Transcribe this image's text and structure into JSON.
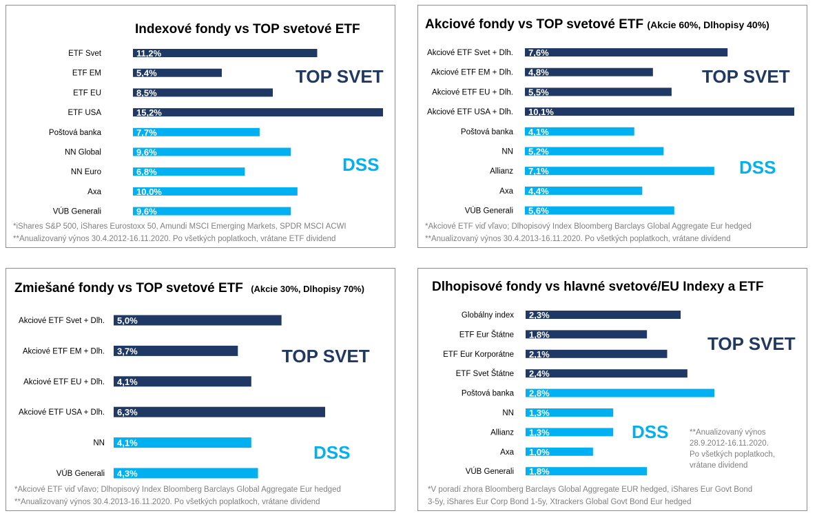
{
  "colors": {
    "top": "#1f3864",
    "dss": "#00b0f0",
    "top_text": "#1f3864",
    "dss_text": "#00b0f0"
  },
  "chart_data": [
    {
      "type": "bar",
      "title": "Indexové fondy vs TOP svetové ETF",
      "subtitle": "",
      "categories": [
        "ETF Svet",
        "ETF EM",
        "ETF EU",
        "ETF USA",
        "Poštová banka",
        "NN Global",
        "NN Euro",
        "Axa",
        "VÚB Generali"
      ],
      "values": [
        11.2,
        5.4,
        8.5,
        15.2,
        7.7,
        9.6,
        6.8,
        10.0,
        9.6
      ],
      "value_labels": [
        "11,2%",
        "5,4%",
        "8,5%",
        "15,2%",
        "7,7%",
        "9,6%",
        "6,8%",
        "10,0%",
        "9,6%"
      ],
      "groups": [
        "top",
        "top",
        "top",
        "top",
        "dss",
        "dss",
        "dss",
        "dss",
        "dss"
      ],
      "group_labels": {
        "top": "TOP SVET",
        "dss": "DSS"
      },
      "notes": [
        "*iShares S&P 500, iShares Eurostoxx 50, Amundi MSCI Emerging Markets, SPDR MSCI ACWI",
        "**Anualizovaný výnos 30.4.2012-16.11.2020. Po všetkých poplatkoch, vrátane ETF dividend"
      ]
    },
    {
      "type": "bar",
      "title": "Akciové fondy vs TOP svetové ETF",
      "subtitle": "(Akcie 60%, Dlhopisy 40%)",
      "categories": [
        "Akciové ETF Svet + Dlh.",
        "Akciové ETF EM + Dlh.",
        "Akciové ETF EU + Dlh.",
        "Akciové ETF USA + Dlh.",
        "Poštová banka",
        "NN",
        "Allianz",
        "Axa",
        "VÚB Generali"
      ],
      "values": [
        7.6,
        4.8,
        5.5,
        10.1,
        4.1,
        5.2,
        7.1,
        4.4,
        5.6
      ],
      "value_labels": [
        "7,6%",
        "4,8%",
        "5,5%",
        "10,1%",
        "4,1%",
        "5,2%",
        "7,1%",
        "4,4%",
        "5,6%"
      ],
      "groups": [
        "top",
        "top",
        "top",
        "top",
        "dss",
        "dss",
        "dss",
        "dss",
        "dss"
      ],
      "group_labels": {
        "top": "TOP SVET",
        "dss": "DSS"
      },
      "notes": [
        "*Akciové ETF viď vľavo; Dlhopisový Index Bloomberg Barclays Global Aggregate Eur hedged",
        "**Anualizovaný výnos 30.4.2013-16.11.2020. Po všetkých poplatkoch, vrátane dividend"
      ]
    },
    {
      "type": "bar",
      "title": "Zmiešané fondy vs TOP svetové ETF",
      "subtitle": "(Akcie 30%, Dlhopisy 70%)",
      "categories": [
        "Akciové ETF Svet  + Dlh.",
        "Akciové ETF EM + Dlh.",
        "Akciové ETF EU + Dlh.",
        "Akciové ETF USA + Dlh.",
        "NN",
        "VÚB Generali"
      ],
      "values": [
        5.0,
        3.7,
        4.1,
        6.3,
        4.1,
        4.3
      ],
      "value_labels": [
        "5,0%",
        "3,7%",
        "4,1%",
        "6,3%",
        "4,1%",
        "4,3%"
      ],
      "groups": [
        "top",
        "top",
        "top",
        "top",
        "dss",
        "dss"
      ],
      "group_labels": {
        "top": "TOP SVET",
        "dss": "DSS"
      },
      "notes": [
        "*Akciové ETF viď vľavo; Dlhopisový Index Bloomberg Barclays Global Aggregate Eur hedged",
        "**Anualizovaný výnos 30.4.2013-16.11.2020. Po všetkých poplatkoch, vrátane dividend"
      ]
    },
    {
      "type": "bar",
      "title": "Dlhopisové fondy vs hlavné svetové/EU Indexy a ETF",
      "subtitle": "",
      "categories": [
        "Globálny index",
        "ETF Eur Štátne",
        "ETF Eur Korporátne",
        "ETF Svet Štátne",
        "Poštová banka",
        "NN",
        "Allianz",
        "Axa",
        "VÚB Generali"
      ],
      "values": [
        2.3,
        1.8,
        2.1,
        2.4,
        2.8,
        1.3,
        1.3,
        1.0,
        1.8
      ],
      "value_labels": [
        "2,3%",
        "1,8%",
        "2,1%",
        "2,4%",
        "2,8%",
        "1,3%",
        "1,3%",
        "1,0%",
        "1,8%"
      ],
      "groups": [
        "top",
        "top",
        "top",
        "top",
        "dss",
        "dss",
        "dss",
        "dss",
        "dss"
      ],
      "group_labels": {
        "top": "TOP SVET",
        "dss": "DSS"
      },
      "side_note": [
        "**Anualizovaný výnos",
        "28.9.2012-16.11.2020.",
        "Po všetkých poplatkoch,",
        "vrátane dividend"
      ],
      "notes": [
        "*V poradí zhora Bloomberg Barclays Global Aggregate EUR hedged, iShares Eur Govt Bond",
        "3-5y, iShares Eur Corp Bond 1-5y, Xtrackers Global Govt Bond Eur hedged"
      ]
    }
  ]
}
